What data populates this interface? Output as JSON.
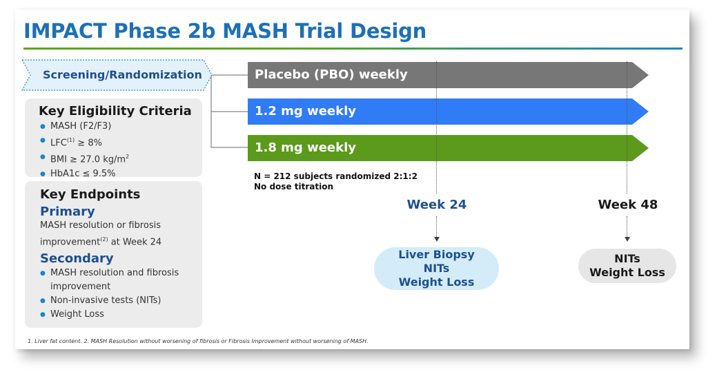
{
  "title": "IMPACT Phase 2b MASH Trial Design",
  "screening": {
    "label": "Screening/Randomization"
  },
  "eligibility": {
    "title": "Key Eligibility Criteria",
    "items": [
      {
        "text": "MASH (F2/F3)"
      },
      {
        "pre": "LFC",
        "sup": "(1)",
        "post": " ≥ 8%"
      },
      {
        "pre": "BMI ≥ 27.0 kg/m",
        "sup": "2",
        "post": ""
      },
      {
        "text": "HbA1c ≤ 9.5%"
      }
    ]
  },
  "endpoints": {
    "title": "Key Endpoints",
    "primary_title": "Primary",
    "primary_line1": "MASH resolution or fibrosis",
    "primary_pre": "improvement",
    "primary_sup": "(2)",
    "primary_post": " at Week 24",
    "secondary_title": "Secondary",
    "secondary_items": [
      "MASH resolution and fibrosis improvement",
      "Non-invasive tests (NITs)",
      "Weight Loss"
    ]
  },
  "arms": [
    {
      "label": "Placebo (PBO) weekly",
      "color": "#777777"
    },
    {
      "label": "1.2 mg weekly",
      "color": "#2f7cf6"
    },
    {
      "label": "1.8 mg weekly",
      "color": "#5c9a1b"
    }
  ],
  "randomization_note": {
    "line1": "N = 212 subjects randomized 2:1:2",
    "line2": "No dose titration"
  },
  "milestones": [
    {
      "label": "Week 24",
      "color": "#1e4f8f",
      "assessments": [
        "Liver Biopsy",
        "NITs",
        "Weight Loss"
      ],
      "bg": "#d3ecf8"
    },
    {
      "label": "Week 48",
      "color": "#1a1a1a",
      "assessments": [
        "NITs",
        "Weight Loss"
      ],
      "bg": "#e6e6e6"
    }
  ],
  "footnote": "1. Liver fat content. 2. MASH Resolution without worsening of fibrosis or Fibrosis Improvement without worsening of MASH."
}
